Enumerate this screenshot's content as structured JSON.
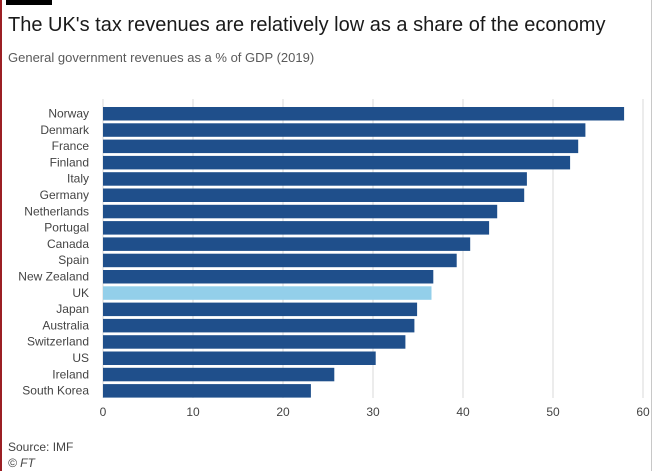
{
  "header": {
    "title": "The UK's tax revenues are relatively low as a share of the economy",
    "subtitle": "General government revenues as a % of GDP (2019)"
  },
  "footer": {
    "source": "Source: IMF",
    "credit": "© FT"
  },
  "colors": {
    "bar": "#1f4f8b",
    "highlight": "#93cfea",
    "grid": "#d9d9d9",
    "text": "#444444"
  },
  "chart_data": {
    "type": "bar",
    "orientation": "horizontal",
    "categories": [
      "Norway",
      "Denmark",
      "France",
      "Finland",
      "Italy",
      "Germany",
      "Netherlands",
      "Portugal",
      "Canada",
      "Spain",
      "New Zealand",
      "UK",
      "Japan",
      "Australia",
      "Switzerland",
      "US",
      "Ireland",
      "South Korea"
    ],
    "values": [
      57.9,
      53.6,
      52.8,
      51.9,
      47.1,
      46.8,
      43.8,
      42.9,
      40.8,
      39.3,
      36.7,
      36.5,
      34.9,
      34.6,
      33.6,
      30.3,
      25.7,
      23.1
    ],
    "highlight": "UK",
    "xlim": [
      0,
      60
    ],
    "xticks": [
      0,
      10,
      20,
      30,
      40,
      50,
      60
    ],
    "grid": true,
    "title": "The UK's tax revenues are relatively low as a share of the economy",
    "xlabel": "",
    "ylabel": ""
  }
}
